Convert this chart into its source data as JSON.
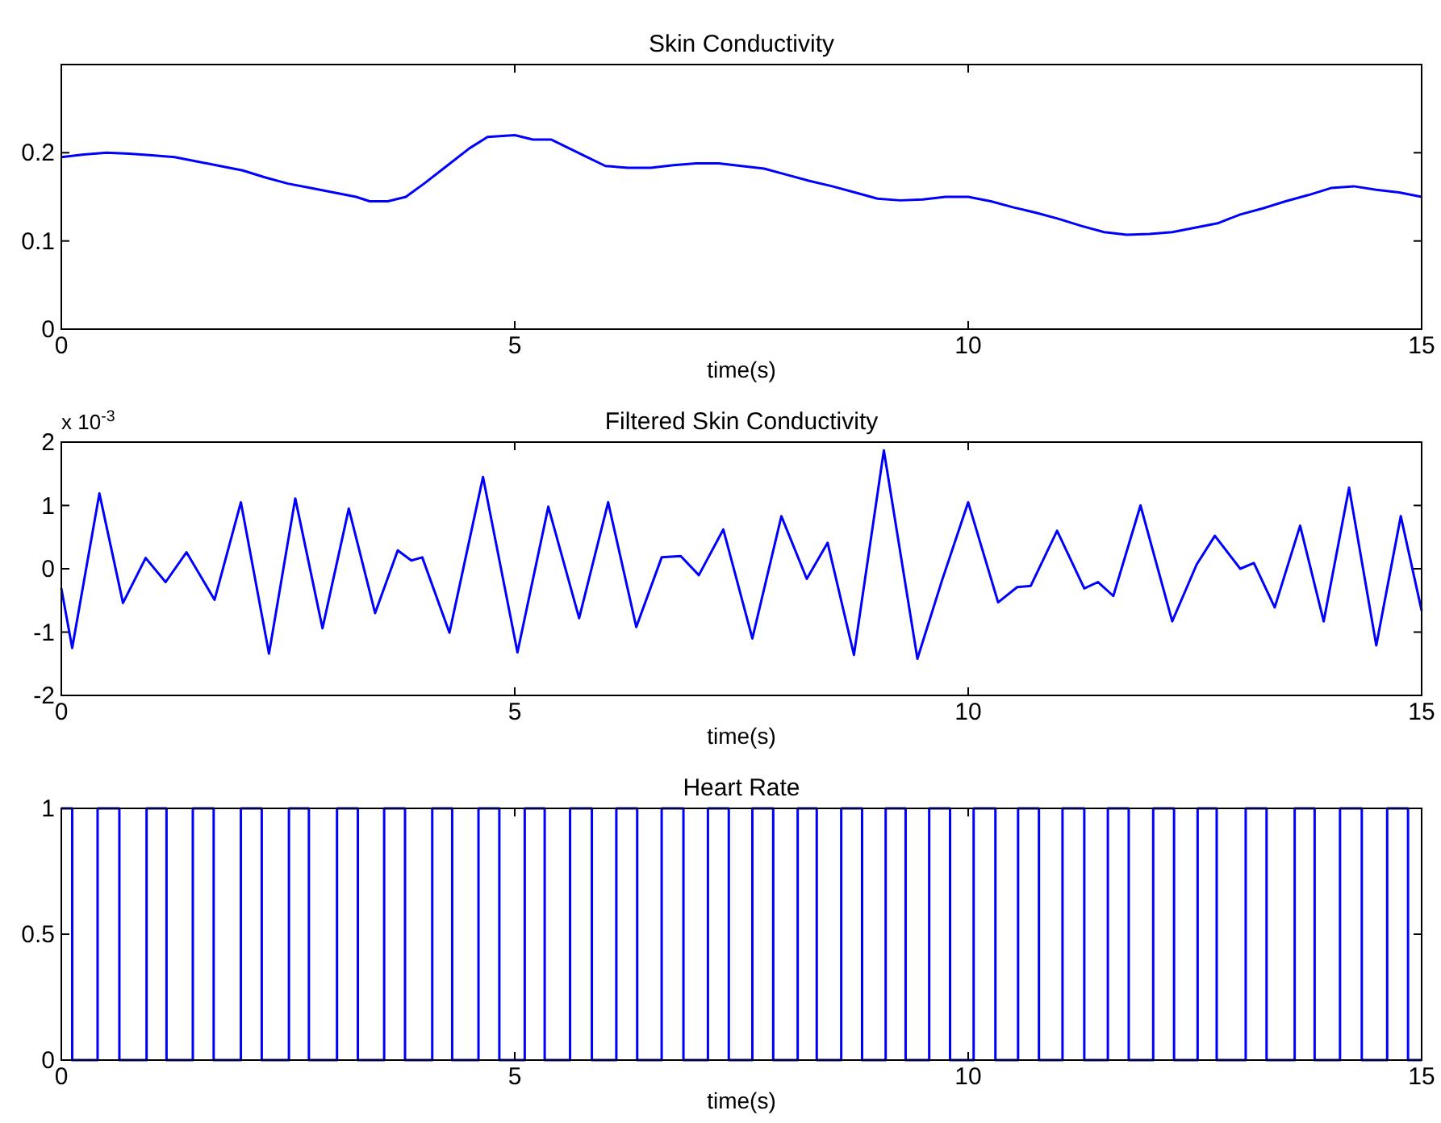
{
  "chart_data": [
    {
      "type": "line",
      "title": "Skin Conductivity",
      "xlabel": "time(s)",
      "xlim": [
        0,
        15
      ],
      "xticks": [
        0,
        5,
        10,
        15
      ],
      "ylim": [
        0,
        0.3
      ],
      "yticks": [
        0,
        0.1,
        0.2
      ],
      "series": [
        {
          "color": "#0000ff",
          "x": [
            0,
            0.25,
            0.5,
            0.75,
            1,
            1.25,
            1.5,
            1.75,
            2,
            2.25,
            2.5,
            2.75,
            3,
            3.25,
            3.4,
            3.6,
            3.8,
            4,
            4.25,
            4.5,
            4.7,
            5,
            5.2,
            5.4,
            5.6,
            5.8,
            6,
            6.25,
            6.5,
            6.75,
            7,
            7.25,
            7.5,
            7.75,
            8,
            8.25,
            8.5,
            8.75,
            9,
            9.25,
            9.5,
            9.75,
            10,
            10.25,
            10.5,
            10.75,
            11,
            11.25,
            11.5,
            11.75,
            12,
            12.25,
            12.5,
            12.75,
            13,
            13.25,
            13.5,
            13.75,
            14,
            14.25,
            14.5,
            14.75,
            15
          ],
          "values": [
            0.195,
            0.198,
            0.2,
            0.199,
            0.197,
            0.195,
            0.19,
            0.185,
            0.18,
            0.172,
            0.165,
            0.16,
            0.155,
            0.15,
            0.145,
            0.145,
            0.15,
            0.165,
            0.185,
            0.205,
            0.218,
            0.22,
            0.215,
            0.215,
            0.205,
            0.195,
            0.185,
            0.183,
            0.183,
            0.186,
            0.188,
            0.188,
            0.185,
            0.182,
            0.175,
            0.168,
            0.162,
            0.155,
            0.148,
            0.146,
            0.147,
            0.15,
            0.15,
            0.145,
            0.138,
            0.132,
            0.125,
            0.117,
            0.11,
            0.107,
            0.108,
            0.11,
            0.115,
            0.12,
            0.13,
            0.137,
            0.145,
            0.152,
            0.16,
            0.162,
            0.158,
            0.155,
            0.15
          ]
        }
      ]
    },
    {
      "type": "line",
      "title": "Filtered Skin Conductivity",
      "xlabel": "time(s)",
      "xlim": [
        0,
        15
      ],
      "xticks": [
        0,
        5,
        10,
        15
      ],
      "ylim": [
        -2,
        2
      ],
      "yticks": [
        -2,
        -1,
        0,
        1,
        2
      ],
      "annotations": [
        "x 10$^{-3}$"
      ],
      "series": [
        {
          "color": "#0000ff",
          "x": [
            0,
            0.12,
            0.42,
            0.68,
            0.93,
            1.15,
            1.38,
            1.69,
            1.98,
            2.29,
            2.58,
            2.88,
            3.17,
            3.46,
            3.71,
            3.86,
            3.98,
            4.28,
            4.65,
            5.03,
            5.37,
            5.71,
            6.03,
            6.34,
            6.62,
            6.83,
            7.03,
            7.3,
            7.62,
            7.94,
            8.22,
            8.45,
            8.74,
            9.07,
            9.44,
            9.71,
            10,
            10.33,
            10.54,
            10.69,
            10.98,
            11.28,
            11.43,
            11.6,
            11.9,
            12.25,
            12.52,
            12.72,
            13,
            13.15,
            13.38,
            13.66,
            13.92,
            14.2,
            14.5,
            14.77,
            15
          ],
          "values": [
            -0.31,
            -1.25,
            1.19,
            -0.54,
            0.17,
            -0.21,
            0.26,
            -0.49,
            1.05,
            -1.34,
            1.11,
            -0.94,
            0.95,
            -0.7,
            0.29,
            0.13,
            0.18,
            -1.01,
            1.45,
            -1.32,
            0.98,
            -0.78,
            1.05,
            -0.92,
            0.18,
            0.2,
            -0.1,
            0.62,
            -1.1,
            0.83,
            -0.16,
            0.41,
            -1.36,
            1.87,
            -1.42,
            -0.19,
            1.05,
            -0.53,
            -0.29,
            -0.27,
            0.6,
            -0.31,
            -0.21,
            -0.43,
            1,
            -0.83,
            0.07,
            0.52,
            0,
            0.09,
            -0.61,
            0.68,
            -0.83,
            1.28,
            -1.21,
            0.83,
            -0.66
          ]
        }
      ]
    },
    {
      "type": "step",
      "title": "Heart Rate",
      "xlabel": "time(s)",
      "xlim": [
        0,
        15
      ],
      "xticks": [
        0,
        5,
        10,
        15
      ],
      "ylim": [
        0,
        1
      ],
      "yticks": [
        0,
        0.5,
        1
      ],
      "series": [
        {
          "color": "#0000ff",
          "x": [
            0,
            0.12,
            0.4,
            0.64,
            0.94,
            1.16,
            1.45,
            1.68,
            1.98,
            2.21,
            2.51,
            2.73,
            3.04,
            3.27,
            3.56,
            3.79,
            4.09,
            4.31,
            4.6,
            4.83,
            5.11,
            5.33,
            5.61,
            5.85,
            6.12,
            6.35,
            6.62,
            6.86,
            7.13,
            7.36,
            7.62,
            7.85,
            8.12,
            8.33,
            8.6,
            8.83,
            9.09,
            9.31,
            9.57,
            9.8,
            10.06,
            10.3,
            10.55,
            10.78,
            11.04,
            11.28,
            11.54,
            11.77,
            12.04,
            12.27,
            12.53,
            12.74,
            13.06,
            13.29,
            13.6,
            13.82,
            14.1,
            14.34,
            14.62,
            14.85,
            15
          ],
          "values": [
            1,
            0,
            1,
            0,
            1,
            0,
            1,
            0,
            1,
            0,
            1,
            0,
            1,
            0,
            1,
            0,
            1,
            0,
            1,
            0,
            1,
            0,
            1,
            0,
            1,
            0,
            1,
            0,
            1,
            0,
            1,
            0,
            1,
            0,
            1,
            0,
            1,
            0,
            1,
            0,
            1,
            0,
            1,
            0,
            1,
            0,
            1,
            0,
            1,
            0,
            1,
            0,
            1,
            0,
            1,
            0,
            1,
            0,
            1,
            0,
            0
          ]
        }
      ]
    }
  ]
}
